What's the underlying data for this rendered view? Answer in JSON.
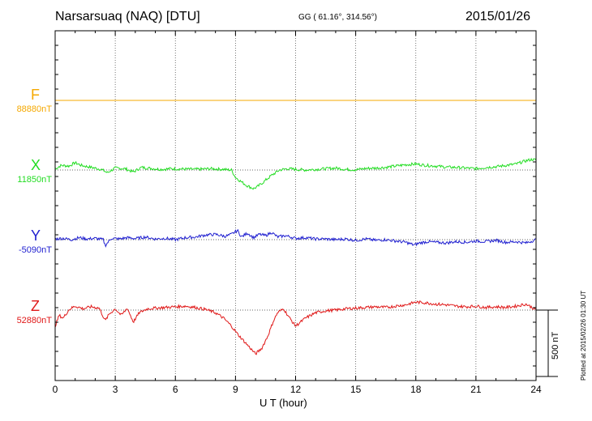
{
  "header": {
    "station": "Narsarsuaq (NAQ)  [DTU]",
    "coords": "GG ( 61.16°, 314.56°)",
    "date": "2015/01/26"
  },
  "footer": {
    "plotted": "Plotted at 2015/02/26 01:30 UT",
    "scale_label": "500 nT"
  },
  "chart_data": {
    "type": "line",
    "xlabel": "U T (hour)",
    "xlim": [
      0,
      24
    ],
    "xticks": [
      "0",
      "3",
      "6",
      "9",
      "12",
      "15",
      "18",
      "21",
      "24"
    ],
    "grid": "dotted-vertical",
    "scale_bar_nT": 500,
    "channels": [
      {
        "key": "F",
        "label": "F",
        "baseline": "88880nT",
        "color": "#f5a800",
        "x": [
          0,
          24
        ],
        "values": [
          0,
          0
        ]
      },
      {
        "key": "X",
        "label": "X",
        "baseline": "11850nT",
        "color": "#22dd22",
        "x": [
          0,
          0.3,
          0.7,
          1.0,
          1.3,
          1.8,
          2.3,
          2.6,
          3.0,
          3.5,
          3.9,
          4.3,
          4.8,
          5.3,
          5.8,
          6.3,
          7.0,
          7.8,
          8.4,
          8.8,
          9.0,
          9.3,
          9.6,
          9.9,
          10.1,
          10.4,
          10.8,
          11.2,
          11.6,
          12.0,
          12.5,
          13.0,
          13.5,
          14.0,
          14.5,
          15.0,
          15.5,
          16.0,
          16.5,
          17.0,
          17.5,
          18.0,
          18.5,
          19.0,
          19.5,
          20.0,
          20.5,
          21.0,
          21.5,
          22.0,
          22.5,
          23.0,
          23.5,
          23.8,
          24.0
        ],
        "values": [
          8,
          35,
          30,
          55,
          35,
          20,
          5,
          -20,
          15,
          10,
          -15,
          20,
          12,
          5,
          10,
          8,
          5,
          10,
          5,
          0,
          -55,
          -90,
          -120,
          -140,
          -125,
          -90,
          -40,
          0,
          10,
          5,
          0,
          5,
          10,
          15,
          5,
          2,
          12,
          15,
          20,
          30,
          40,
          45,
          35,
          30,
          22,
          20,
          15,
          10,
          20,
          25,
          35,
          45,
          70,
          80,
          75
        ]
      },
      {
        "key": "Y",
        "label": "Y",
        "baseline": "-5090nT",
        "color": "#1f1fd0",
        "x": [
          0,
          0.4,
          0.8,
          1.2,
          1.6,
          2.0,
          2.4,
          2.5,
          2.8,
          3.2,
          3.6,
          4.0,
          4.5,
          5.0,
          5.5,
          6.0,
          6.5,
          7.0,
          7.5,
          8.0,
          8.5,
          8.8,
          9.1,
          9.3,
          9.6,
          9.9,
          10.2,
          10.5,
          10.8,
          11.1,
          11.5,
          12.0,
          12.5,
          13.0,
          13.5,
          14.0,
          14.5,
          15.0,
          15.5,
          16.0,
          16.5,
          17.0,
          17.5,
          17.9,
          18.2,
          18.6,
          19.0,
          19.5,
          20.0,
          20.5,
          21.0,
          21.5,
          22.0,
          22.5,
          23.0,
          23.5,
          24.0
        ],
        "values": [
          5,
          10,
          0,
          15,
          5,
          10,
          0,
          -45,
          10,
          5,
          15,
          8,
          20,
          5,
          10,
          0,
          15,
          20,
          35,
          40,
          25,
          40,
          70,
          20,
          50,
          15,
          40,
          30,
          55,
          20,
          30,
          10,
          15,
          5,
          5,
          0,
          5,
          -5,
          5,
          -5,
          0,
          -10,
          -20,
          -40,
          -25,
          -15,
          -20,
          -25,
          -15,
          -20,
          -10,
          -15,
          -5,
          -20,
          -15,
          -25,
          0
        ]
      },
      {
        "key": "Z",
        "label": "Z",
        "baseline": "52880nT",
        "color": "#e01818",
        "x": [
          0,
          0.2,
          0.4,
          0.7,
          1.0,
          1.4,
          1.8,
          2.2,
          2.5,
          2.7,
          3.0,
          3.3,
          3.6,
          3.9,
          4.2,
          4.6,
          5.0,
          5.5,
          6.0,
          6.5,
          7.0,
          7.5,
          8.0,
          8.4,
          8.8,
          9.1,
          9.4,
          9.7,
          10.0,
          10.3,
          10.6,
          10.9,
          11.1,
          11.4,
          11.7,
          12.0,
          12.5,
          13.0,
          13.5,
          14.0,
          14.5,
          15.0,
          15.5,
          16.0,
          16.5,
          17.0,
          17.5,
          18.0,
          18.5,
          19.0,
          19.5,
          20.0,
          20.5,
          21.0,
          21.5,
          22.0,
          22.5,
          23.0,
          23.5,
          23.8,
          24.0
        ],
        "values": [
          -120,
          -40,
          -60,
          5,
          30,
          10,
          25,
          15,
          -80,
          -30,
          10,
          -40,
          15,
          -90,
          -20,
          10,
          15,
          20,
          25,
          30,
          20,
          5,
          -20,
          -60,
          -120,
          -180,
          -230,
          -280,
          -330,
          -290,
          -200,
          -80,
          -20,
          10,
          -60,
          -120,
          -60,
          -20,
          -5,
          0,
          10,
          15,
          20,
          25,
          20,
          30,
          40,
          60,
          55,
          45,
          40,
          30,
          25,
          30,
          20,
          25,
          20,
          30,
          45,
          20,
          0
        ]
      }
    ]
  }
}
